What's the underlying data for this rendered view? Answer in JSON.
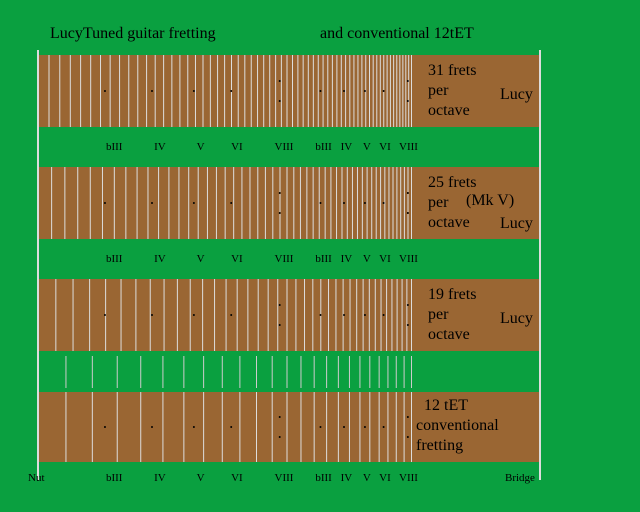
{
  "header": {
    "title_left": "LucyTuned guitar fretting",
    "title_right": "and conventional 12tET"
  },
  "boards": [
    {
      "lines": [
        "31 frets",
        "per",
        "octave"
      ],
      "tag": "Lucy"
    },
    {
      "lines": [
        "25 frets",
        "per",
        "octave"
      ],
      "extra": "(Mk V)",
      "tag": "Lucy"
    },
    {
      "lines": [
        "19 frets",
        "per",
        "octave"
      ],
      "tag": "Lucy"
    },
    {
      "lines": [
        "12 tET",
        "conventional",
        "fretting"
      ]
    }
  ],
  "interval_labels": [
    "bIII",
    "IV",
    "V",
    "VI",
    "VIII",
    "bIII",
    "IV",
    "V",
    "VI",
    "VIII"
  ],
  "nut_label": "Nut",
  "bridge_label": "Bridge"
}
